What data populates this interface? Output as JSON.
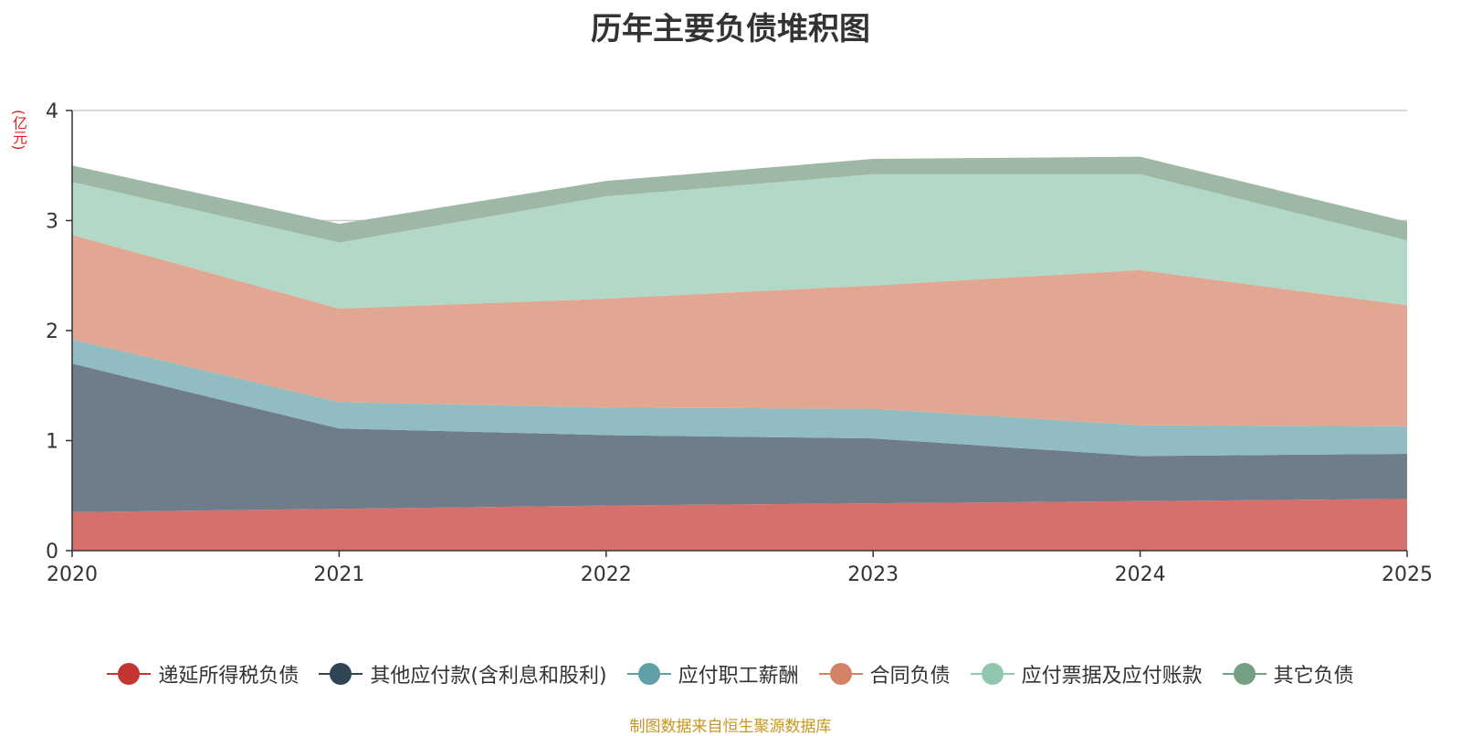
{
  "chart_data": {
    "type": "area",
    "stacked": true,
    "title": "历年主要负债堆积图",
    "ylabel": "(亿元)",
    "xlabel": "",
    "x": [
      "2020",
      "2021",
      "2022",
      "2023",
      "2024",
      "2025"
    ],
    "ylim": [
      0,
      4
    ],
    "yticks": [
      0,
      1,
      2,
      3,
      4
    ],
    "grid": true,
    "legend_position": "bottom",
    "series": [
      {
        "name": "递延所得税负债",
        "color": "#c23531",
        "fill": "#d6706c",
        "values": [
          0.35,
          0.38,
          0.41,
          0.43,
          0.45,
          0.47
        ]
      },
      {
        "name": "其他应付款(含利息和股利)",
        "color": "#2f4554",
        "fill": "#6e7d89",
        "values": [
          1.35,
          0.73,
          0.64,
          0.59,
          0.41,
          0.41
        ]
      },
      {
        "name": "应付职工薪酬",
        "color": "#61a0a8",
        "fill": "#91bcc2",
        "values": [
          0.22,
          0.24,
          0.25,
          0.27,
          0.28,
          0.25
        ]
      },
      {
        "name": "合同负债",
        "color": "#d48265",
        "fill": "#e1a792",
        "values": [
          0.95,
          0.85,
          0.99,
          1.12,
          1.41,
          1.1
        ]
      },
      {
        "name": "应付票据及应付账款",
        "color": "#91c7ae",
        "fill": "#b2d9c7",
        "values": [
          0.48,
          0.6,
          0.93,
          1.01,
          0.87,
          0.59
        ]
      },
      {
        "name": "其它负债",
        "color": "#749f83",
        "fill": "#9eb8a5",
        "values": [
          0.15,
          0.17,
          0.14,
          0.14,
          0.16,
          0.17
        ]
      }
    ],
    "source_note": "制图数据来自恒生聚源数据库"
  }
}
